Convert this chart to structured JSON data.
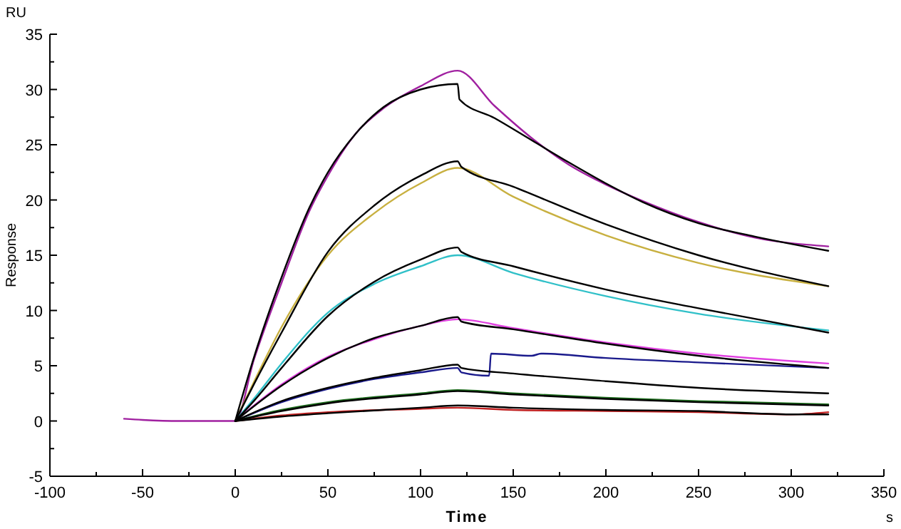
{
  "chart_data": {
    "type": "line",
    "xlabel": "Time",
    "ylabel": "Response",
    "annotations": [
      "RU",
      "s"
    ],
    "xlim": [
      -100,
      350
    ],
    "ylim": [
      -5,
      35
    ],
    "xticks": [
      -100,
      {
        "value": -75,
        "label": null
      },
      -50,
      {
        "value": -25,
        "label": null
      },
      0,
      {
        "value": 25,
        "label": null
      },
      50,
      {
        "value": 75,
        "label": null
      },
      100,
      {
        "value": 125,
        "label": null
      },
      150,
      {
        "value": 175,
        "label": null
      },
      200,
      {
        "value": 225,
        "label": null
      },
      250,
      {
        "value": 275,
        "label": null
      },
      300,
      {
        "value": 325,
        "label": null
      },
      350
    ],
    "yticks": [
      -5,
      {
        "value": -2.5,
        "label": null
      },
      0,
      {
        "value": 2.5,
        "label": null
      },
      5,
      {
        "value": 7.5,
        "label": null
      },
      10,
      {
        "value": 12.5,
        "label": null
      },
      15,
      {
        "value": 17.5,
        "label": null
      },
      20,
      {
        "value": 22.5,
        "label": null
      },
      25,
      {
        "value": 27.5,
        "label": null
      },
      30,
      {
        "value": 32.5,
        "label": null
      },
      35
    ],
    "grid": false,
    "marker": "none",
    "line_style": "solid",
    "series": [
      {
        "color": "#a020a0",
        "x": [
          -60,
          -50,
          -30,
          -1,
          0,
          10,
          25,
          40,
          50,
          65,
          80,
          100,
          120,
          140,
          160,
          180,
          200,
          220,
          250,
          280,
          320
        ],
        "values": [
          0.2,
          0.1,
          0,
          0,
          0,
          5.5,
          12.5,
          19,
          22.2,
          26,
          28.3,
          30.3,
          31.7,
          28.5,
          25.6,
          23.2,
          21.4,
          19.9,
          18,
          16.6,
          15.8
        ]
      },
      {
        "color": "#c8b040",
        "x": [
          0,
          10,
          25,
          50,
          75,
          100,
          120,
          150,
          200,
          250,
          320
        ],
        "values": [
          0,
          3.5,
          8.5,
          15,
          18.8,
          21.5,
          22.9,
          20.3,
          16.8,
          14.3,
          12.2
        ]
      },
      {
        "color": "#30c0c8",
        "x": [
          0,
          10,
          25,
          50,
          75,
          100,
          120,
          150,
          200,
          250,
          320
        ],
        "values": [
          0,
          2,
          5.2,
          9.8,
          12.4,
          14,
          15,
          13.4,
          11.3,
          9.7,
          8.2
        ]
      },
      {
        "color": "#e040e0",
        "x": [
          0,
          25,
          50,
          75,
          100,
          120,
          150,
          200,
          250,
          320
        ],
        "values": [
          0,
          3.3,
          5.8,
          7.4,
          8.6,
          9.2,
          8.4,
          7.1,
          6.1,
          5.2
        ]
      },
      {
        "color": "#1a1a8c",
        "x": [
          0,
          25,
          50,
          75,
          100,
          120,
          122,
          137,
          138,
          160,
          165,
          200,
          250,
          320
        ],
        "values": [
          0,
          1.7,
          2.9,
          3.8,
          4.4,
          4.8,
          4.4,
          4.1,
          6.1,
          5.9,
          6.1,
          5.7,
          5.3,
          4.8
        ]
      },
      {
        "color": "#1a6a1a",
        "x": [
          0,
          25,
          50,
          100,
          120,
          150,
          200,
          250,
          320
        ],
        "values": [
          0,
          1,
          1.7,
          2.5,
          2.8,
          2.5,
          2.1,
          1.8,
          1.5
        ]
      },
      {
        "color": "#c02020",
        "x": [
          0,
          25,
          50,
          100,
          120,
          150,
          200,
          250,
          300,
          320
        ],
        "values": [
          0,
          0.5,
          0.8,
          1.1,
          1.2,
          1,
          0.9,
          0.8,
          0.6,
          0.8
        ]
      },
      {
        "color": "#000000",
        "x": [
          0,
          10,
          25,
          40,
          50,
          65,
          80,
          100,
          120,
          121,
          140,
          160,
          180,
          200,
          220,
          250,
          280,
          320
        ],
        "values": [
          0,
          5.7,
          13,
          19.3,
          22.5,
          26,
          28.4,
          30,
          30.5,
          29.1,
          27.4,
          25.4,
          23.4,
          21.5,
          19.8,
          17.9,
          16.7,
          15.4
        ]
      },
      {
        "color": "#000000",
        "x": [
          0,
          10,
          25,
          50,
          75,
          100,
          120,
          122,
          150,
          200,
          250,
          320
        ],
        "values": [
          0,
          3.3,
          8,
          15.3,
          19.5,
          22.2,
          23.5,
          23,
          21.2,
          17.8,
          15,
          12.2
        ]
      },
      {
        "color": "#000000",
        "x": [
          0,
          10,
          25,
          50,
          75,
          100,
          120,
          122,
          150,
          200,
          250,
          320
        ],
        "values": [
          0,
          1.8,
          4.8,
          9.5,
          12.6,
          14.6,
          15.7,
          15.3,
          14,
          11.9,
          10.2,
          8
        ]
      },
      {
        "color": "#000000",
        "x": [
          0,
          25,
          50,
          75,
          100,
          120,
          122,
          150,
          200,
          250,
          320
        ],
        "values": [
          0,
          3.2,
          5.7,
          7.5,
          8.6,
          9.4,
          9,
          8.3,
          7,
          5.9,
          4.8
        ]
      },
      {
        "color": "#000000",
        "x": [
          0,
          25,
          50,
          75,
          100,
          120,
          122,
          150,
          200,
          250,
          320
        ],
        "values": [
          0,
          1.8,
          3,
          3.9,
          4.6,
          5.1,
          4.8,
          4.3,
          3.6,
          3,
          2.5
        ]
      },
      {
        "color": "#000000",
        "x": [
          0,
          25,
          50,
          100,
          120,
          150,
          200,
          250,
          320
        ],
        "values": [
          0,
          0.9,
          1.6,
          2.4,
          2.7,
          2.4,
          2,
          1.7,
          1.4
        ]
      },
      {
        "color": "#000000",
        "x": [
          0,
          25,
          50,
          100,
          120,
          150,
          200,
          250,
          300,
          320
        ],
        "values": [
          0,
          0.4,
          0.7,
          1.2,
          1.4,
          1.2,
          1,
          0.9,
          0.6,
          0.6
        ]
      }
    ]
  }
}
